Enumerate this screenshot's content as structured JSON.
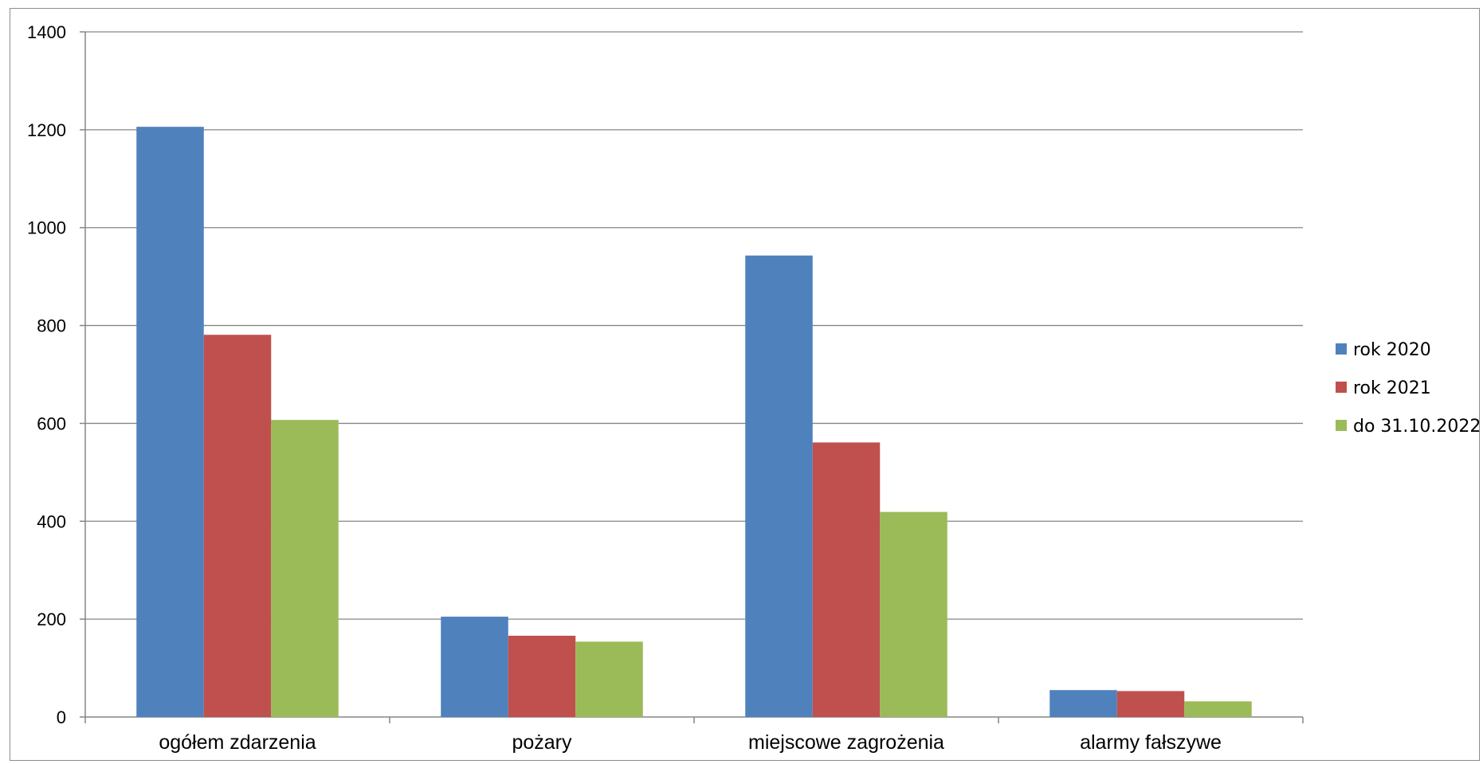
{
  "chart_data": {
    "type": "bar",
    "categories": [
      "ogółem zdarzenia",
      "pożary",
      "miejscowe zagrożenia",
      "alarmy fałszywe"
    ],
    "series": [
      {
        "name": "rok 2020",
        "color": "#4f81bd",
        "values": [
          1206,
          205,
          943,
          55
        ]
      },
      {
        "name": "rok 2021",
        "color": "#c0504d",
        "values": [
          781,
          166,
          561,
          53
        ]
      },
      {
        "name": "do 31.10.2022",
        "color": "#9bbb59",
        "values": [
          607,
          154,
          419,
          32
        ]
      }
    ],
    "title": "",
    "xlabel": "",
    "ylabel": "",
    "ylim": [
      0,
      1400
    ],
    "yticks": [
      0,
      200,
      400,
      600,
      800,
      1000,
      1200,
      1400
    ],
    "grid": true,
    "legend": "right"
  }
}
